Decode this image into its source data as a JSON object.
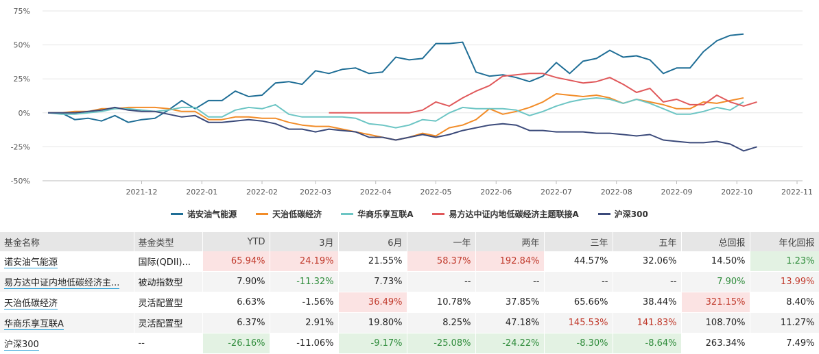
{
  "chart_data": {
    "type": "line",
    "yticks": [
      -50,
      -25,
      0,
      25,
      50,
      75
    ],
    "ylim": [
      -50,
      75
    ],
    "y_unit": "%",
    "x_ticks": [
      {
        "label": "2021-12",
        "pos": 7
      },
      {
        "label": "2022-01",
        "pos": 11.5
      },
      {
        "label": "2022-02",
        "pos": 16
      },
      {
        "label": "2022-03",
        "pos": 20
      },
      {
        "label": "2022-04",
        "pos": 24.5
      },
      {
        "label": "2022-05",
        "pos": 29
      },
      {
        "label": "2022-06",
        "pos": 33.5
      },
      {
        "label": "2022-07",
        "pos": 38
      },
      {
        "label": "2022-08",
        "pos": 42.5
      },
      {
        "label": "2022-09",
        "pos": 47
      },
      {
        "label": "2022-10",
        "pos": 51.5
      },
      {
        "label": "2022-11",
        "pos": 56
      }
    ],
    "x_count": 57,
    "series": [
      {
        "name": "诺安油气能源",
        "color": "#1f6e96",
        "start": 0,
        "values": [
          0,
          0,
          -5,
          -4,
          -6,
          -2,
          -7,
          -5,
          -4,
          2,
          9,
          3,
          9,
          9,
          16,
          12,
          13,
          22,
          23,
          21,
          31,
          29,
          32,
          33,
          29,
          30,
          41,
          39,
          40,
          51,
          51,
          52,
          30,
          27,
          28,
          26,
          23,
          27,
          37,
          29,
          38,
          40,
          46,
          41,
          42,
          39,
          29,
          33,
          33,
          45,
          53,
          57,
          58
        ]
      },
      {
        "name": "天治低碳经济",
        "color": "#f28c28",
        "start": 0,
        "values": [
          0,
          0,
          1,
          1,
          3,
          3,
          4,
          4,
          4,
          3,
          1,
          1,
          -5,
          -5,
          -3,
          -3,
          -4,
          -4,
          -7,
          -9,
          -10,
          -10,
          -12,
          -14,
          -16,
          -18,
          -20,
          -18,
          -15,
          -17,
          -11,
          -9,
          -5,
          3,
          -1,
          1,
          4,
          8,
          14,
          13,
          12,
          13,
          11,
          7,
          10,
          8,
          6,
          3,
          3,
          8,
          7,
          9,
          11
        ]
      },
      {
        "name": "华商乐享互联A",
        "color": "#6cc5c4",
        "start": 0,
        "values": [
          0,
          -1,
          -1,
          0,
          1,
          3,
          3,
          2,
          1,
          2,
          4,
          4,
          -3,
          -3,
          2,
          4,
          3,
          6,
          -1,
          -3,
          -3,
          -3,
          -3,
          -4,
          -8,
          -9,
          -11,
          -9,
          -5,
          -6,
          0,
          4,
          3,
          3,
          3,
          2,
          -2,
          1,
          5,
          8,
          10,
          11,
          10,
          7,
          10,
          7,
          3,
          -1,
          -1,
          1,
          4,
          2,
          8
        ]
      },
      {
        "name": "易方达中证内地低碳经济主题联接A",
        "color": "#e0585a",
        "start": 21,
        "values": [
          0,
          0,
          0,
          0,
          0,
          0,
          0,
          2,
          8,
          5,
          11,
          16,
          20,
          27,
          28,
          29,
          29,
          26,
          24,
          22,
          23,
          26,
          21,
          15,
          18,
          8,
          10,
          6,
          6,
          13,
          8,
          5,
          8
        ]
      },
      {
        "name": "沪深300",
        "color": "#3b4a7a",
        "start": 0,
        "values": [
          0,
          0,
          0,
          1,
          2,
          4,
          2,
          1,
          1,
          -1,
          -3,
          -2,
          -7,
          -7,
          -6,
          -5,
          -6,
          -8,
          -12,
          -12,
          -14,
          -12,
          -13,
          -14,
          -18,
          -18,
          -20,
          -18,
          -16,
          -18,
          -16,
          -13,
          -11,
          -9,
          -8,
          -9,
          -13,
          -13,
          -14,
          -14,
          -14,
          -15,
          -15,
          -16,
          -17,
          -16,
          -20,
          -21,
          -22,
          -22,
          -21,
          -23,
          -28,
          -25
        ]
      }
    ]
  },
  "legend_items": [
    "诺安油气能源",
    "天治低碳经济",
    "华商乐享互联A",
    "易方达中证内地低碳经济主题联接A",
    "沪深300"
  ],
  "table": {
    "headers": [
      "基金名称",
      "基金类型",
      "YTD",
      "3月",
      "6月",
      "一年",
      "两年",
      "三年",
      "五年",
      "总回报",
      "年化回报"
    ],
    "rows": [
      {
        "cells": [
          "诺安油气能源",
          "国际(QDII)...",
          "65.94%",
          "24.19%",
          "21.55%",
          "58.37%",
          "192.84%",
          "44.57%",
          "32.06%",
          "14.50%",
          "1.23%"
        ],
        "styles": [
          "",
          "",
          "pos",
          "pos",
          "",
          "pos",
          "pos",
          "",
          "",
          "",
          "neg"
        ]
      },
      {
        "cells": [
          "易方达中证内地低碳经济主...",
          "被动指数型",
          "7.90%",
          "-11.32%",
          "7.73%",
          "--",
          "--",
          "--",
          "--",
          "7.90%",
          "13.99%"
        ],
        "styles": [
          "",
          "",
          "",
          "neg",
          "",
          "",
          "",
          "",
          "",
          "neg",
          "pos"
        ]
      },
      {
        "cells": [
          "天治低碳经济",
          "灵活配置型",
          "6.63%",
          "-1.56%",
          "36.49%",
          "10.78%",
          "37.85%",
          "65.66%",
          "38.44%",
          "321.15%",
          "8.40%"
        ],
        "styles": [
          "",
          "",
          "",
          "",
          "pos",
          "",
          "",
          "",
          "",
          "pos",
          ""
        ]
      },
      {
        "cells": [
          "华商乐享互联A",
          "灵活配置型",
          "6.37%",
          "2.91%",
          "19.80%",
          "8.25%",
          "47.18%",
          "145.53%",
          "141.83%",
          "108.70%",
          "11.27%"
        ],
        "styles": [
          "",
          "",
          "",
          "",
          "",
          "",
          "",
          "pos",
          "pos",
          "",
          ""
        ]
      },
      {
        "cells": [
          "沪深300",
          "--",
          "-26.16%",
          "-11.06%",
          "-9.17%",
          "-25.08%",
          "-24.22%",
          "-8.30%",
          "-8.64%",
          "263.34%",
          "7.49%"
        ],
        "styles": [
          "",
          "",
          "neg",
          "",
          "neg",
          "neg",
          "neg",
          "neg",
          "neg",
          "",
          ""
        ]
      }
    ]
  }
}
